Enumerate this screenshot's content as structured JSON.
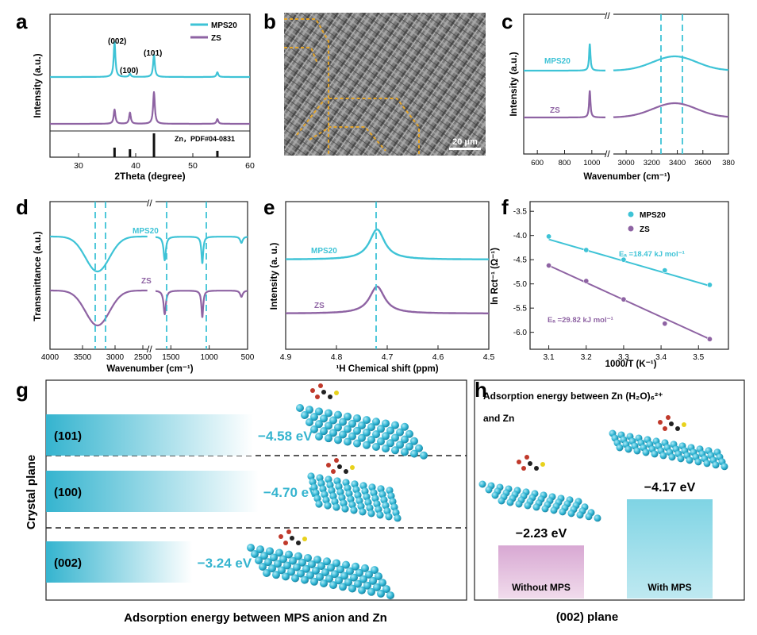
{
  "colors": {
    "mps": "#3ec3d6",
    "zs": "#8e63a3",
    "axis": "#222222",
    "dash": "#3ec3d6",
    "gold": "#e3a42a"
  },
  "panel_labels": {
    "a": "a",
    "b": "b",
    "c": "c",
    "d": "d",
    "e": "e",
    "f": "f",
    "g": "g",
    "h": "h"
  },
  "chart_data": [
    {
      "id": "a",
      "type": "line",
      "xlabel": "2Theta (degree)",
      "ylabel": "Intensity (a.u.)",
      "xlim": [
        25,
        60
      ],
      "xticks": [
        30,
        40,
        50,
        60
      ],
      "series": [
        {
          "name": "MPS20"
        },
        {
          "name": "ZS"
        }
      ],
      "peaks": [
        36.3,
        39.0,
        43.2,
        54.3
      ],
      "peak_labels": [
        "(002)",
        "(100)",
        "(101)"
      ],
      "reference_label": "Zn，PDF#04-0831"
    },
    {
      "id": "b",
      "type": "image",
      "scale_bar": "20 μm"
    },
    {
      "id": "c",
      "type": "line",
      "xlabel": "Wavenumber (cm⁻¹)",
      "ylabel": "Intensity (a.u.)",
      "xticks": [
        "600",
        "800",
        "1000",
        "3000",
        "3200",
        "3400",
        "3600",
        "380"
      ],
      "series": [
        {
          "name": "MPS20"
        },
        {
          "name": "ZS"
        }
      ],
      "dashed_lines": [
        3250,
        3420
      ]
    },
    {
      "id": "d",
      "type": "line",
      "xlabel": "Wavenumber (cm⁻¹)",
      "ylabel": "Transmittance (a.u.)",
      "xticks": [
        "4000",
        "3500",
        "3000",
        "2500",
        "1500",
        "1000",
        "500"
      ],
      "series": [
        {
          "name": "MPS20"
        },
        {
          "name": "ZS"
        }
      ],
      "dashed_lines": [
        3350,
        3220,
        1580,
        1100
      ]
    },
    {
      "id": "e",
      "type": "line",
      "xlabel": "¹H Chemical shift (ppm)",
      "ylabel": "Intensity (a. u.)",
      "xlim": [
        4.9,
        4.5
      ],
      "xticks": [
        "4.9",
        "4.8",
        "4.7",
        "4.6",
        "4.5"
      ],
      "series": [
        {
          "name": "MPS20"
        },
        {
          "name": "ZS"
        }
      ],
      "dashed_lines": [
        4.72
      ]
    },
    {
      "id": "f",
      "type": "scatter",
      "xlabel": "1000/T (K⁻¹)",
      "ylabel": "ln Rct⁻¹ (Ω⁻¹)",
      "xlim": [
        3.05,
        3.58
      ],
      "ylim": [
        -6.35,
        -3.3
      ],
      "xticks": [
        "3.1",
        "3.2",
        "3.3",
        "3.4",
        "3.5"
      ],
      "yticks": [
        "-3.5",
        "-4.0",
        "-4.5",
        "-5.0",
        "-5.5",
        "-6.0"
      ],
      "series": [
        {
          "name": "MPS20",
          "x": [
            3.1,
            3.2,
            3.3,
            3.41,
            3.53
          ],
          "y": [
            -4.02,
            -4.3,
            -4.5,
            -4.72,
            -5.02
          ],
          "fit": [
            [
              3.1,
              -4.08
            ],
            [
              3.53,
              -5.04
            ]
          ],
          "annotation": "Eₐ =18.47 kJ mol⁻¹"
        },
        {
          "name": "ZS",
          "x": [
            3.1,
            3.2,
            3.3,
            3.41,
            3.53
          ],
          "y": [
            -4.62,
            -4.94,
            -5.32,
            -5.82,
            -6.14
          ],
          "fit": [
            [
              3.1,
              -4.62
            ],
            [
              3.53,
              -6.14
            ]
          ],
          "annotation": "Eₐ =29.82 kJ mol⁻¹"
        }
      ]
    },
    {
      "id": "g",
      "type": "bar",
      "orientation": "horizontal",
      "xlabel": "Adsorption energy between MPS anion and Zn",
      "ylabel": "Crystal plane",
      "categories": [
        "(101)",
        "(100)",
        "(002)"
      ],
      "values": [
        -4.58,
        -4.7,
        -3.24
      ],
      "value_labels": [
        "−4.58 eV",
        "−4.70 eV",
        "−3.24 eV"
      ]
    },
    {
      "id": "h",
      "type": "bar",
      "title_line1": "Adsorption energy between Zn (H₂O)₆²⁺",
      "title_line2": "and Zn",
      "xlabel": "(002) plane",
      "categories": [
        "Without MPS",
        "With MPS"
      ],
      "values": [
        -2.23,
        -4.17
      ],
      "value_labels": [
        "−2.23 eV",
        "−4.17 eV"
      ]
    }
  ]
}
